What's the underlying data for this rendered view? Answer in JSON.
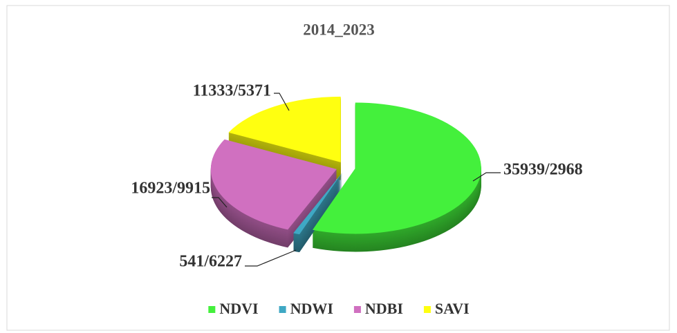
{
  "chart_data": {
    "type": "pie3d",
    "title": "2014_2023",
    "categories": [
      "NDVI",
      "NDWI",
      "NDBI",
      "SAVI"
    ],
    "values": [
      35939,
      541,
      16923,
      11333
    ],
    "value_labels": [
      "35939/2968",
      "541/6227",
      "16923/9915",
      "11333/5371"
    ],
    "colors": [
      "#44f03c",
      "#3fa8c4",
      "#d070c0",
      "#ffff10"
    ],
    "legend": "bottom"
  }
}
